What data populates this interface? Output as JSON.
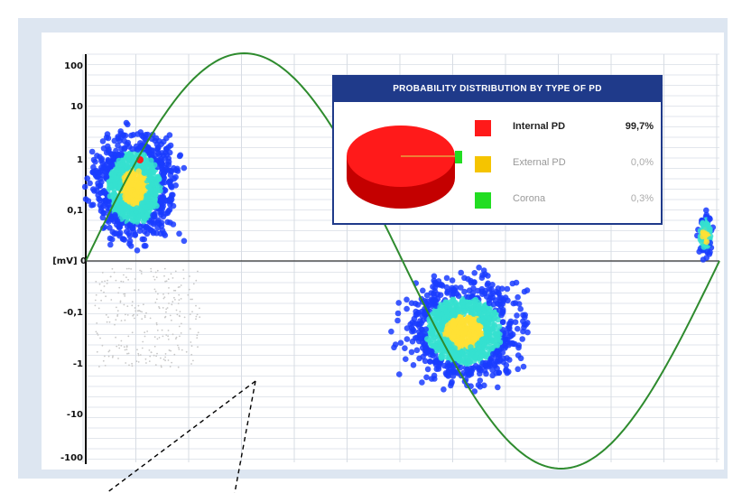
{
  "chart_data": {
    "type": "scatter",
    "title": "",
    "xlabel": "",
    "ylabel": "[mV]",
    "y_scale": "symmetric-log",
    "y_ticks": [
      "100",
      "10",
      "1",
      "0,1",
      "0",
      "-0,1",
      "-1",
      "-10",
      "-100"
    ],
    "x_range_deg": [
      0,
      360
    ],
    "grid": true,
    "reference_curve": {
      "name": "sine",
      "color": "#2e8b2e"
    },
    "clusters": [
      {
        "phase_deg": [
          0,
          55
        ],
        "amplitude_mv": [
          0.02,
          20
        ],
        "density": "high"
      },
      {
        "phase_deg": [
          180,
          250
        ],
        "amplitude_mv": [
          -0.02,
          -15
        ],
        "density": "high"
      },
      {
        "phase_deg": [
          345,
          360
        ],
        "amplitude_mv": [
          0.02,
          0.6
        ],
        "density": "low"
      }
    ],
    "colors": {
      "low": "#1a3cff",
      "mid": "#35e0d0",
      "high": "#ffe135",
      "peak": "#ff2020"
    }
  },
  "legend": {
    "title": "PROBABILITY DISTRIBUTION BY TYPE OF PD",
    "items": [
      {
        "name": "Internal PD",
        "value": "99,7%",
        "color": "#ff1a1a",
        "fraction": 0.997
      },
      {
        "name": "External PD",
        "value": "0,0%",
        "color": "#f5c400",
        "fraction": 0.0
      },
      {
        "name": "Corona",
        "value": "0,3%",
        "color": "#22dd22",
        "fraction": 0.003
      }
    ]
  }
}
